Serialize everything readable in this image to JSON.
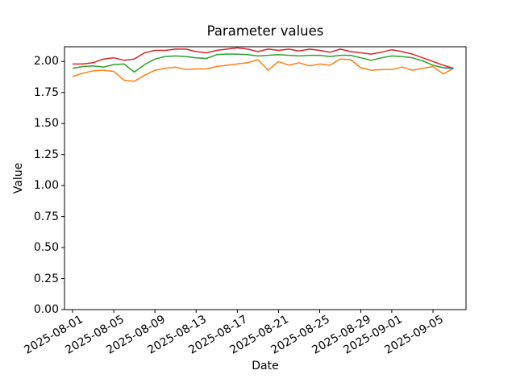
{
  "figure": {
    "background": "#ffffff",
    "spine_color": "#000000"
  },
  "chart_data": {
    "type": "line",
    "title": "Parameter values",
    "xlabel": "Date",
    "ylabel": "Value",
    "grid": false,
    "legend": null,
    "ylim": [
      0.0,
      2.119
    ],
    "xlim_days_from_first_date": [
      -0.78,
      38.2
    ],
    "yticks": [
      0.0,
      0.25,
      0.5,
      0.75,
      1.0,
      1.25,
      1.5,
      1.75,
      2.0
    ],
    "xticks": [
      "2025-08-01",
      "2025-08-05",
      "2025-08-09",
      "2025-08-13",
      "2025-08-17",
      "2025-08-21",
      "2025-08-25",
      "2025-08-29",
      "2025-09-01",
      "2025-09-05"
    ],
    "x": [
      "2025-08-01",
      "2025-08-02",
      "2025-08-03",
      "2025-08-04",
      "2025-08-05",
      "2025-08-06",
      "2025-08-07",
      "2025-08-08",
      "2025-08-09",
      "2025-08-10",
      "2025-08-11",
      "2025-08-12",
      "2025-08-13",
      "2025-08-14",
      "2025-08-15",
      "2025-08-16",
      "2025-08-17",
      "2025-08-18",
      "2025-08-19",
      "2025-08-20",
      "2025-08-21",
      "2025-08-22",
      "2025-08-23",
      "2025-08-24",
      "2025-08-25",
      "2025-08-26",
      "2025-08-27",
      "2025-08-28",
      "2025-08-29",
      "2025-08-30",
      "2025-08-31",
      "2025-09-01",
      "2025-09-02",
      "2025-09-03",
      "2025-09-04",
      "2025-09-05",
      "2025-09-06",
      "2025-09-07"
    ],
    "series": [
      {
        "name": "red-line",
        "color": "#d62728",
        "values": [
          1.98,
          1.98,
          1.99,
          2.02,
          2.03,
          2.01,
          2.02,
          2.07,
          2.09,
          2.09,
          2.1,
          2.1,
          2.08,
          2.07,
          2.09,
          2.1,
          2.11,
          2.1,
          2.08,
          2.1,
          2.09,
          2.1,
          2.085,
          2.1,
          2.09,
          2.075,
          2.1,
          2.08,
          2.07,
          2.06,
          2.075,
          2.095,
          2.08,
          2.06,
          2.03,
          2.0,
          1.97,
          1.945
        ]
      },
      {
        "name": "green-line",
        "color": "#2ca02c",
        "values": [
          1.945,
          1.96,
          1.965,
          1.955,
          1.975,
          1.98,
          1.915,
          1.975,
          2.02,
          2.04,
          2.045,
          2.04,
          2.03,
          2.025,
          2.055,
          2.06,
          2.06,
          2.055,
          2.045,
          2.05,
          2.055,
          2.05,
          2.045,
          2.05,
          2.05,
          2.04,
          2.05,
          2.05,
          2.03,
          2.01,
          2.03,
          2.045,
          2.04,
          2.03,
          2.005,
          1.97,
          1.95,
          1.945
        ]
      },
      {
        "name": "orange-line",
        "color": "#ff7f0e",
        "values": [
          1.88,
          1.905,
          1.925,
          1.93,
          1.92,
          1.85,
          1.84,
          1.89,
          1.93,
          1.945,
          1.955,
          1.935,
          1.94,
          1.94,
          1.96,
          1.97,
          1.98,
          1.99,
          2.015,
          1.93,
          2.0,
          1.97,
          1.99,
          1.965,
          1.98,
          1.97,
          2.02,
          2.015,
          1.95,
          1.93,
          1.935,
          1.935,
          1.955,
          1.93,
          1.945,
          1.96,
          1.9,
          1.945
        ]
      },
      {
        "name": "blue-line",
        "color": "#1f77b4",
        "x": [
          "2025-09-06",
          "2025-09-07"
        ],
        "values": [
          1.95,
          1.945
        ]
      }
    ]
  }
}
